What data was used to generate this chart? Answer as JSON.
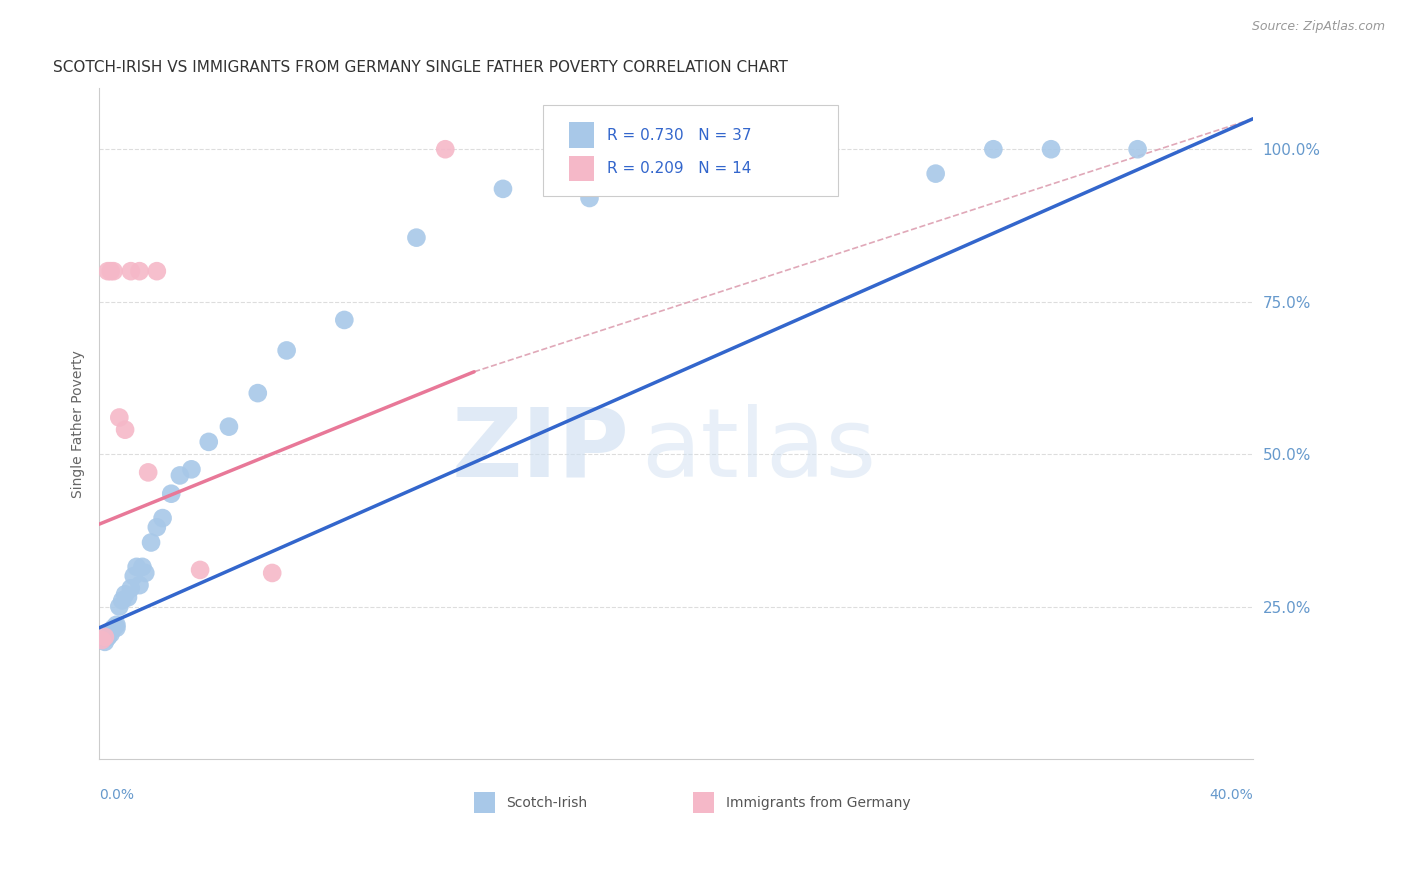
{
  "title": "SCOTCH-IRISH VS IMMIGRANTS FROM GERMANY SINGLE FATHER POVERTY CORRELATION CHART",
  "source": "Source: ZipAtlas.com",
  "ylabel": "Single Father Poverty",
  "legend_blue_r": "R = 0.730",
  "legend_blue_n": "N = 37",
  "legend_pink_r": "R = 0.209",
  "legend_pink_n": "N = 14",
  "watermark_zip": "ZIP",
  "watermark_atlas": "atlas",
  "blue_scatter_color": "#a8c8e8",
  "pink_scatter_color": "#f5b8c8",
  "blue_line_color": "#3366cc",
  "pink_line_color": "#e87898",
  "diag_line_color": "#e0a8b8",
  "grid_color": "#dddddd",
  "axis_label_color": "#6699cc",
  "title_color": "#333333",
  "source_color": "#999999",
  "ylabel_color": "#666666",
  "legend_text_color": "#3366cc",
  "bottom_legend_text_color": "#555555",
  "xmin": 0.0,
  "xmax": 0.4,
  "ymin": 0.0,
  "ymax": 1.1,
  "ytick_vals": [
    0.25,
    0.5,
    0.75,
    1.0
  ],
  "ytick_labels": [
    "25.0%",
    "50.0%",
    "75.0%",
    "100.0%"
  ],
  "si_x": [
    0.001,
    0.002,
    0.003,
    0.003,
    0.004,
    0.005,
    0.006,
    0.006,
    0.007,
    0.008,
    0.009,
    0.01,
    0.011,
    0.012,
    0.013,
    0.014,
    0.015,
    0.016,
    0.018,
    0.02,
    0.022,
    0.025,
    0.028,
    0.032,
    0.038,
    0.045,
    0.055,
    0.065,
    0.085,
    0.11,
    0.14,
    0.17,
    0.25,
    0.29,
    0.31,
    0.33,
    0.36
  ],
  "si_y": [
    0.195,
    0.192,
    0.2,
    0.2,
    0.205,
    0.215,
    0.22,
    0.215,
    0.25,
    0.26,
    0.27,
    0.265,
    0.28,
    0.3,
    0.315,
    0.285,
    0.315,
    0.305,
    0.355,
    0.38,
    0.395,
    0.435,
    0.465,
    0.475,
    0.52,
    0.545,
    0.6,
    0.67,
    0.72,
    0.855,
    0.935,
    0.92,
    1.0,
    0.96,
    1.0,
    1.0,
    1.0
  ],
  "ger_x": [
    0.001,
    0.002,
    0.003,
    0.004,
    0.005,
    0.007,
    0.009,
    0.011,
    0.014,
    0.017,
    0.02,
    0.035,
    0.06,
    0.12
  ],
  "ger_y": [
    0.195,
    0.2,
    0.8,
    0.8,
    0.8,
    0.56,
    0.54,
    0.8,
    0.8,
    0.47,
    0.8,
    0.31,
    0.305,
    1.0
  ],
  "blue_line_x0": 0.0,
  "blue_line_y0": 0.215,
  "blue_line_x1": 0.4,
  "blue_line_y1": 1.05,
  "pink_line_x0": 0.0,
  "pink_line_y0": 0.385,
  "pink_line_x1": 0.13,
  "pink_line_y1": 0.635
}
